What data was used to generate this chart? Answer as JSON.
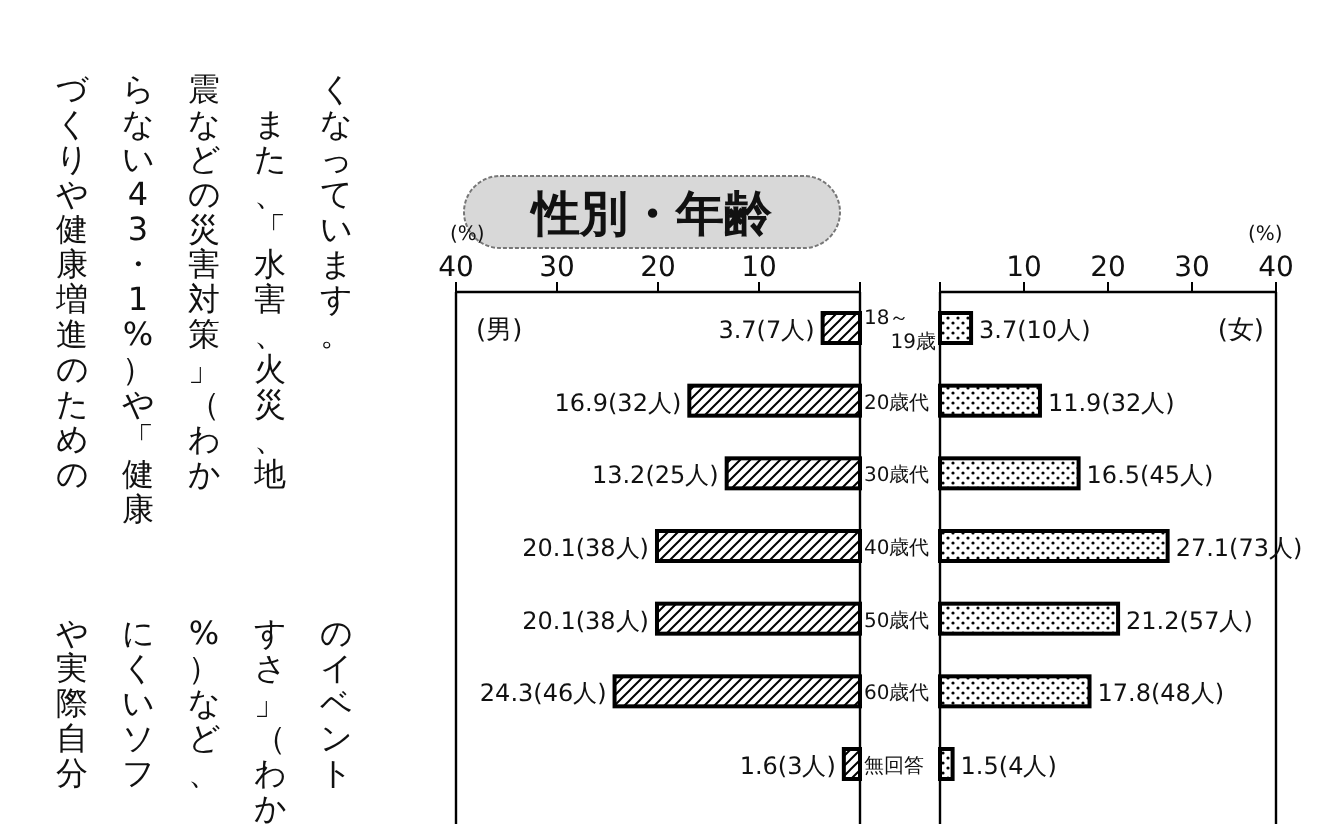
{
  "chart_data": [
    {
      "type": "other",
      "annotations": [
        "くなっています。",
        "　また、「水害、火災、地",
        "震などの災害対策」（わか",
        "らない43・1%）や「健康",
        "づくりや健康増進のための",
        "のイベント",
        "すさ」（わか",
        "%）など、",
        "にくいソフ",
        "や実際自分"
      ]
    },
    {
      "type": "bar",
      "orientation": "horizontal",
      "title": "性別・年齢",
      "xlabel": "(%)",
      "xlim": [
        40,
        0
      ],
      "xticks": [
        40,
        30,
        20,
        10,
        {
          "value": 0,
          "label": null
        }
      ],
      "tick_labels": "x",
      "grid": false,
      "legend": false,
      "categories": [
        null,
        null,
        null,
        null,
        null,
        null,
        null
      ],
      "series": [
        {
          "name": "(男)",
          "color": "#000000",
          "values": [
            3.7,
            16.9,
            13.2,
            20.1,
            20.1,
            24.3,
            1.6
          ],
          "value_labels": [
            "3.7(7人)",
            "16.9(32人)",
            "13.2(25人)",
            "20.1(38人)",
            "20.1(38人)",
            "24.3(46人)",
            "1.6(3人)"
          ]
        }
      ]
    },
    {
      "type": "bar",
      "orientation": "horizontal",
      "xlabel": "(%)",
      "xlim": [
        0,
        40
      ],
      "xticks": [
        {
          "value": 0,
          "label": null
        },
        10,
        20,
        30,
        40
      ],
      "grid": false,
      "legend": false,
      "categories": [
        "18～19歳",
        "20歳代",
        "30歳代",
        "40歳代",
        "50歳代",
        "60歳代",
        "無回答"
      ],
      "series": [
        {
          "name": "(女)",
          "color": "#000000",
          "values": [
            3.7,
            11.9,
            16.5,
            27.1,
            21.2,
            17.8,
            1.5
          ],
          "value_labels": [
            "3.7(10人)",
            "11.9(32人)",
            "16.5(45人)",
            "27.1(73人)",
            "21.2(57人)",
            "17.8(48人)",
            "1.5(4人)"
          ]
        }
      ]
    }
  ]
}
